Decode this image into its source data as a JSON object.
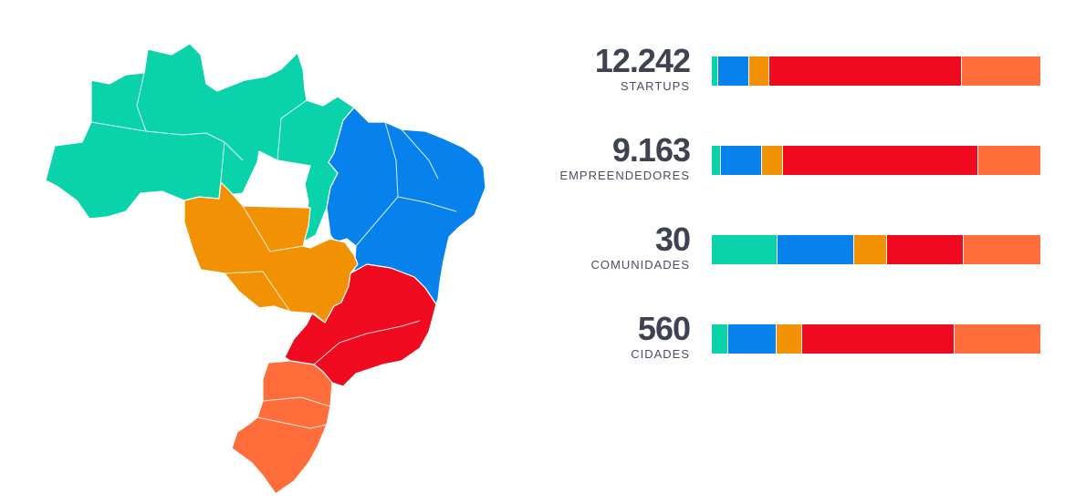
{
  "colors": {
    "norte": "#0ad3ab",
    "nordeste": "#0782ed",
    "centro_oeste": "#f29103",
    "sudeste": "#f00a1f",
    "sul": "#ff6d3a",
    "text": "#3d4350"
  },
  "chart_data": {
    "type": "bar",
    "orientation": "horizontal-stacked-100%",
    "region_keys": [
      "norte",
      "nordeste",
      "centro_oeste",
      "sudeste",
      "sul"
    ],
    "stats": [
      {
        "number": "12.242",
        "label": "STARTUPS",
        "shares": [
          0.02,
          0.095,
          0.06,
          0.585,
          0.24
        ]
      },
      {
        "number": "9.163",
        "label": "EMPREENDEDORES",
        "shares": [
          0.027,
          0.125,
          0.065,
          0.595,
          0.188
        ]
      },
      {
        "number": "30",
        "label": "COMUNIDADES",
        "shares": [
          0.2,
          0.233,
          0.1,
          0.233,
          0.234
        ]
      },
      {
        "number": "560",
        "label": "CIDADES",
        "shares": [
          0.05,
          0.147,
          0.078,
          0.465,
          0.26
        ]
      }
    ]
  }
}
